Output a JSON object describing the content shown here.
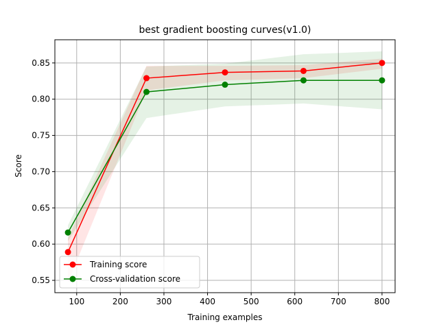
{
  "chart_data": {
    "type": "line",
    "title": "best gradient boosting curves(v1.0)",
    "xlabel": "Training examples",
    "ylabel": "Score",
    "xlim": [
      50,
      830
    ],
    "ylim": [
      0.533,
      0.882
    ],
    "xticks": [
      100,
      200,
      300,
      400,
      500,
      600,
      700,
      800
    ],
    "xtick_labels": [
      "100",
      "200",
      "300",
      "400",
      "500",
      "600",
      "700",
      "800"
    ],
    "yticks": [
      0.55,
      0.6,
      0.65,
      0.7,
      0.75,
      0.8,
      0.85
    ],
    "ytick_labels": [
      "0.55",
      "0.60",
      "0.65",
      "0.70",
      "0.75",
      "0.80",
      "0.85"
    ],
    "grid": true,
    "legend_position": "lower-left",
    "x": [
      80,
      260,
      440,
      620,
      800
    ],
    "series": [
      {
        "name": "Training score",
        "color": "#ff0000",
        "values": [
          0.589,
          0.829,
          0.837,
          0.839,
          0.85
        ],
        "band_upper": [
          0.608,
          0.846,
          0.846,
          0.847,
          0.856
        ],
        "band_lower": [
          0.547,
          0.812,
          0.826,
          0.829,
          0.842
        ]
      },
      {
        "name": "Cross-validation score",
        "color": "#008000",
        "values": [
          0.616,
          0.81,
          0.82,
          0.826,
          0.826
        ],
        "band_upper": [
          0.626,
          0.845,
          0.849,
          0.862,
          0.866
        ],
        "band_lower": [
          0.604,
          0.774,
          0.79,
          0.794,
          0.786
        ]
      }
    ]
  }
}
